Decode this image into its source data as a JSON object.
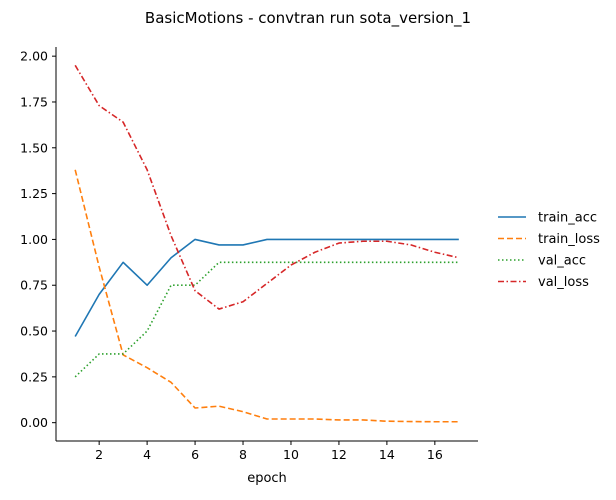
{
  "chart_data": {
    "type": "line",
    "title": "BasicMotions - convtran run sota_version_1",
    "xlabel": "epoch",
    "ylabel": "",
    "x": [
      1,
      2,
      3,
      4,
      5,
      6,
      7,
      8,
      9,
      10,
      11,
      12,
      13,
      14,
      15,
      16,
      17
    ],
    "xlim": [
      0.2,
      17.8
    ],
    "ylim": [
      -0.1,
      2.05
    ],
    "xticks": [
      2,
      4,
      6,
      8,
      10,
      12,
      14,
      16
    ],
    "yticks": [
      "0.00",
      "0.25",
      "0.50",
      "0.75",
      "1.00",
      "1.25",
      "1.50",
      "1.75",
      "2.00"
    ],
    "grid": false,
    "legend_position": "right",
    "series": [
      {
        "name": "train_acc",
        "color": "#1f77b4",
        "style": "solid",
        "values": [
          0.47,
          0.7,
          0.875,
          0.75,
          0.9,
          1.0,
          0.97,
          0.97,
          1.0,
          1.0,
          1.0,
          1.0,
          1.0,
          1.0,
          1.0,
          1.0,
          1.0
        ]
      },
      {
        "name": "train_loss",
        "color": "#ff7f0e",
        "style": "dashed",
        "values": [
          1.38,
          0.85,
          0.37,
          0.3,
          0.22,
          0.08,
          0.09,
          0.06,
          0.02,
          0.02,
          0.02,
          0.015,
          0.015,
          0.008,
          0.006,
          0.005,
          0.005
        ]
      },
      {
        "name": "val_acc",
        "color": "#2ca02c",
        "style": "dotted",
        "values": [
          0.25,
          0.375,
          0.375,
          0.5,
          0.75,
          0.75,
          0.875,
          0.875,
          0.875,
          0.875,
          0.875,
          0.875,
          0.875,
          0.875,
          0.875,
          0.875,
          0.875
        ]
      },
      {
        "name": "val_loss",
        "color": "#d62728",
        "style": "dashdot",
        "values": [
          1.95,
          1.73,
          1.64,
          1.38,
          1.02,
          0.72,
          0.62,
          0.66,
          0.76,
          0.86,
          0.93,
          0.98,
          0.99,
          0.99,
          0.97,
          0.93,
          0.9
        ]
      }
    ]
  }
}
